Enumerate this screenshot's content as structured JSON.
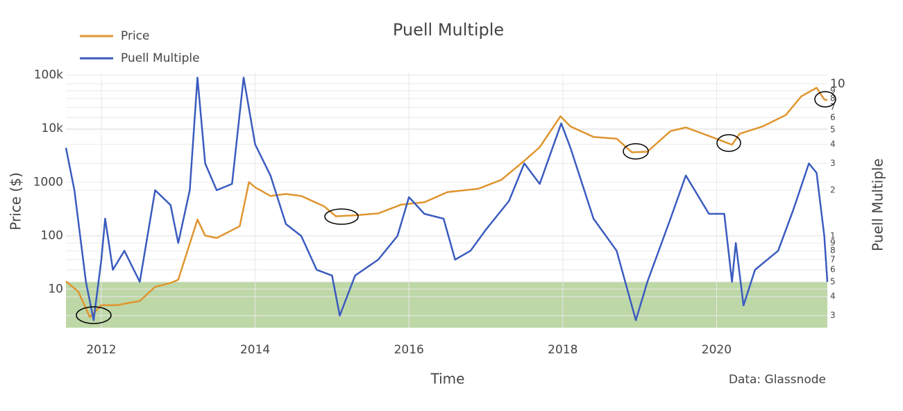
{
  "chart_data": {
    "type": "line",
    "title": "Puell Multiple",
    "x_label": "Time",
    "y_label": "Price ($)",
    "y2_label": "Puell Multiple",
    "annotation": "Data: Glassnode",
    "legend": "top-left",
    "log_y": true,
    "log_y2": true,
    "grid": true,
    "xlim": [
      2011.54,
      2021.44
    ],
    "xticks": [
      2012,
      2014,
      2016,
      2018,
      2020
    ],
    "ylim": [
      1.9,
      110000
    ],
    "yticks": [
      10,
      100,
      1000,
      {
        "value": 10000,
        "label": "10k"
      },
      {
        "value": 100000,
        "label": "100k"
      }
    ],
    "y2lim": [
      0.25,
      11.8
    ],
    "y2ticks": [
      {
        "value": 0.3,
        "label": "3"
      },
      {
        "value": 0.4,
        "label": "4"
      },
      {
        "value": 0.5,
        "label": "5"
      },
      {
        "value": 0.6,
        "label": "6"
      },
      {
        "value": 0.7,
        "label": "7"
      },
      {
        "value": 0.8,
        "label": "8"
      },
      {
        "value": 0.9,
        "label": "9"
      },
      1,
      2,
      3,
      4,
      5,
      6,
      7,
      8,
      9,
      10
    ],
    "band": {
      "axis": "y2",
      "from": 0.25,
      "to": 0.5,
      "color": "#a8c98a"
    },
    "series": [
      {
        "name": "Price",
        "color": "#e0952f",
        "x": [
          2011.54,
          2011.7,
          2011.85,
          2012.0,
          2012.2,
          2012.5,
          2012.7,
          2012.9,
          2013.0,
          2013.25,
          2013.35,
          2013.5,
          2013.8,
          2013.92,
          2014.0,
          2014.2,
          2014.4,
          2014.6,
          2014.9,
          2015.05,
          2015.3,
          2015.6,
          2015.9,
          2016.2,
          2016.5,
          2016.9,
          2017.2,
          2017.5,
          2017.7,
          2017.97,
          2018.1,
          2018.4,
          2018.7,
          2018.9,
          2019.1,
          2019.4,
          2019.6,
          2019.9,
          2020.2,
          2020.3,
          2020.6,
          2020.9,
          2021.1,
          2021.3,
          2021.4,
          2021.44
        ],
        "values": [
          14,
          9,
          3,
          5,
          5,
          6,
          11,
          13,
          15,
          200,
          100,
          90,
          150,
          1000,
          800,
          550,
          600,
          550,
          350,
          230,
          240,
          260,
          380,
          420,
          650,
          750,
          1100,
          2500,
          4500,
          17000,
          11000,
          7000,
          6500,
          3600,
          3700,
          9000,
          10500,
          7300,
          5000,
          8000,
          11000,
          18000,
          40000,
          58000,
          35000,
          34000
        ]
      },
      {
        "name": "Puell Multiple",
        "color": "#3a5bbf",
        "axis": "y2",
        "x": [
          2011.54,
          2011.65,
          2011.8,
          2011.9,
          2012.0,
          2012.05,
          2012.15,
          2012.3,
          2012.5,
          2012.7,
          2012.9,
          2013.0,
          2013.15,
          2013.25,
          2013.35,
          2013.5,
          2013.7,
          2013.85,
          2014.0,
          2014.2,
          2014.4,
          2014.6,
          2014.8,
          2015.0,
          2015.1,
          2015.3,
          2015.6,
          2015.85,
          2016.0,
          2016.2,
          2016.45,
          2016.6,
          2016.8,
          2017.0,
          2017.3,
          2017.5,
          2017.7,
          2017.98,
          2018.1,
          2018.4,
          2018.7,
          2018.95,
          2019.1,
          2019.4,
          2019.6,
          2019.9,
          2020.1,
          2020.2,
          2020.25,
          2020.35,
          2020.5,
          2020.8,
          2021.0,
          2021.2,
          2021.3,
          2021.4,
          2021.44
        ],
        "values": [
          3.8,
          2,
          0.5,
          0.28,
          0.7,
          1.3,
          0.6,
          0.8,
          0.5,
          2.0,
          1.6,
          0.9,
          2,
          11,
          3,
          2,
          2.2,
          11,
          4,
          2.5,
          1.2,
          1.0,
          0.6,
          0.55,
          0.3,
          0.55,
          0.7,
          1.0,
          1.8,
          1.4,
          1.3,
          0.7,
          0.8,
          1.1,
          1.7,
          3,
          2.2,
          5.5,
          3.8,
          1.3,
          0.8,
          0.28,
          0.5,
          1.3,
          2.5,
          1.4,
          1.4,
          0.5,
          0.9,
          0.35,
          0.6,
          0.8,
          1.5,
          3.0,
          2.6,
          1.0,
          0.5
        ]
      }
    ]
  }
}
